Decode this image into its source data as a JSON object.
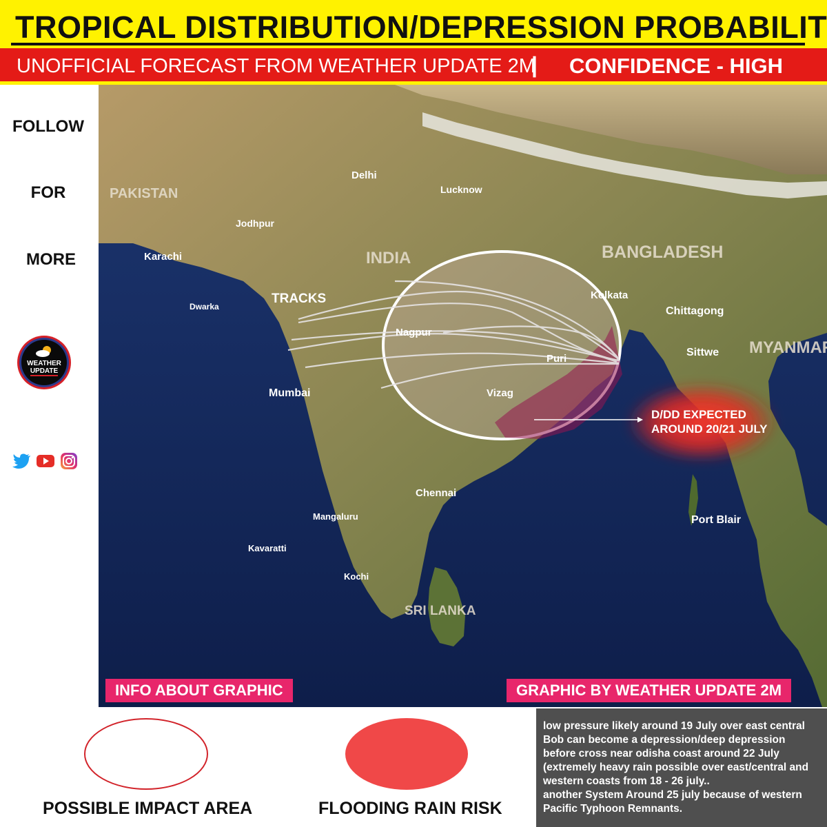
{
  "header": {
    "title": "TROPICAL DISTRIBUTION/DEPRESSION PROBABILITY",
    "subtitle": "UNOFFICIAL FORECAST FROM WEATHER UPDATE 2M",
    "separator": "|",
    "confidence": "CONFIDENCE - HIGH"
  },
  "sidebar": {
    "follow": "FOLLOW",
    "for": "FOR",
    "more": "MORE",
    "logo_text_1": "WEATHER",
    "logo_text_2": "UPDATE",
    "social_icons": [
      "twitter-icon",
      "youtube-icon",
      "instagram-icon"
    ]
  },
  "map": {
    "countries": [
      "PAKISTAN",
      "INDIA",
      "BANGLADESH",
      "MYANMAR",
      "SRI LANKA"
    ],
    "cities": [
      "Delhi",
      "Lucknow",
      "Jodhpur",
      "Karachi",
      "Dwarka",
      "Mumbai",
      "Nagpur",
      "Kolkata",
      "Puri",
      "Vizag",
      "Chittagong",
      "Sittwe",
      "Chennai",
      "Mangaluru",
      "Kavaratti",
      "Kochi",
      "Port Blair"
    ],
    "tracks_label": "TRACKS",
    "expected_line1": "D/DD EXPECTED",
    "expected_line2": "AROUND 20/21 JULY",
    "info_tag": "INFO ABOUT GRAPHIC",
    "credit_tag": "GRAPHIC BY WEATHER UPDATE 2M"
  },
  "legend": {
    "impact_label": "POSSIBLE IMPACT AREA",
    "flood_label": "FLOODING RAIN RISK"
  },
  "note_lines": [
    "low pressure likely around 19 July over east central",
    "Bob can become a depression/deep depression",
    "before cross near odisha coast around 22 July",
    "(extremely heavy rain possible over east/central and",
    "western coasts from 18 - 26 july..",
    "another System Around 25 july because of western",
    "Pacific Typhoon Remnants."
  ],
  "colors": {
    "title_bg": "#fff200",
    "subtitle_bg": "#e41b17",
    "tag_bg": "#e8266b",
    "flood_red": "#f04848",
    "note_bg": "#4f4f4f"
  }
}
